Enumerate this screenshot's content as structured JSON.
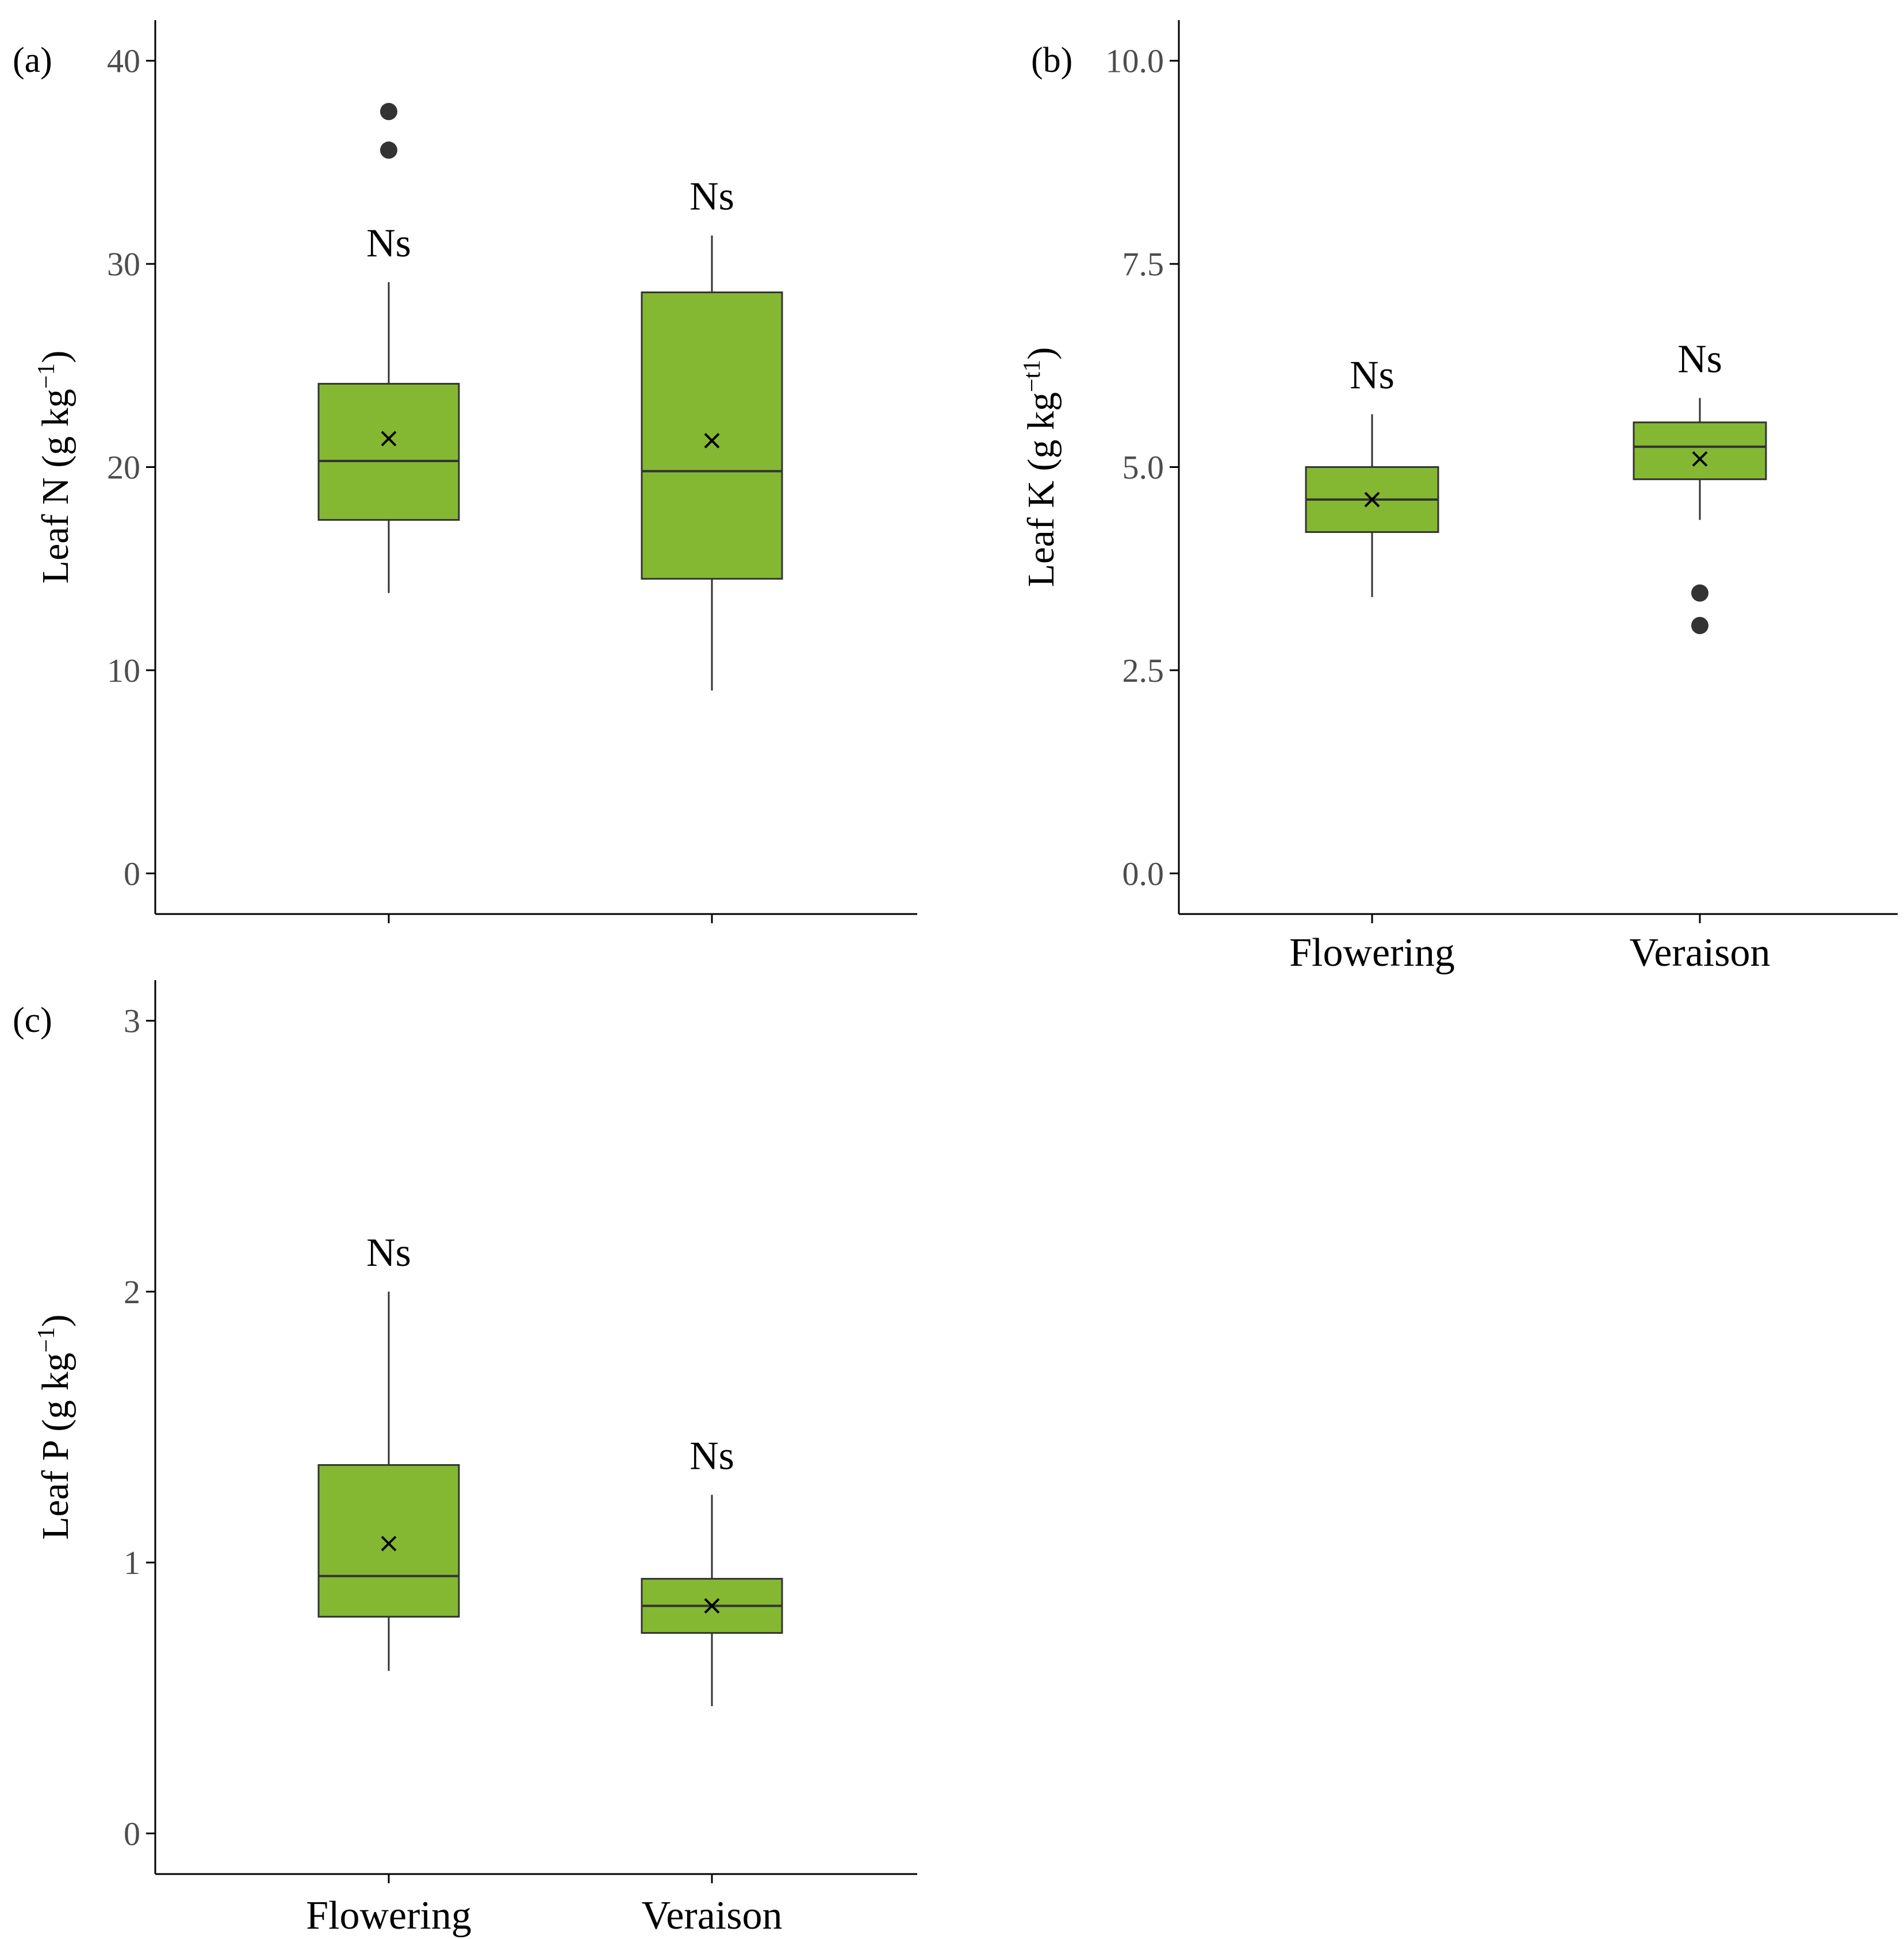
{
  "chart_data": [
    {
      "panel": "(a)",
      "type": "box",
      "ylabel": "Leaf N (g kg",
      "ylabel_sup": "−1",
      "ylabel_close": ")",
      "ylim": [
        -2,
        42
      ],
      "yticks": [
        0,
        10,
        20,
        30,
        40
      ],
      "ytick_labels": [
        "0",
        "10",
        "20",
        "30",
        "40"
      ],
      "categories": [
        "Flowering",
        "Veraison"
      ],
      "show_category_labels": false,
      "fill_color": "#85b832",
      "boxes": [
        {
          "category": "Flowering",
          "whisker_low": 13.8,
          "q1": 17.4,
          "median": 20.3,
          "q3": 24.1,
          "whisker_high": 29.1,
          "mean": 21.4,
          "outliers": [
            35.6,
            37.5
          ],
          "annotation": "Ns"
        },
        {
          "category": "Veraison",
          "whisker_low": 9.0,
          "q1": 14.5,
          "median": 19.8,
          "q3": 28.6,
          "whisker_high": 31.4,
          "mean": 21.3,
          "outliers": [],
          "annotation": "Ns"
        }
      ]
    },
    {
      "panel": "(b)",
      "type": "box",
      "ylabel": "Leaf K (g kg",
      "ylabel_sup": "−t1",
      "ylabel_close": ")",
      "ylim": [
        -0.5,
        10.5
      ],
      "yticks": [
        0,
        2.5,
        5,
        7.5,
        10
      ],
      "ytick_labels": [
        "0.0",
        "2.5",
        "5.0",
        "7.5",
        "10.0"
      ],
      "categories": [
        "Flowering",
        "Veraison"
      ],
      "show_category_labels": true,
      "fill_color": "#85b832",
      "boxes": [
        {
          "category": "Flowering",
          "whisker_low": 3.4,
          "q1": 4.2,
          "median": 4.6,
          "q3": 5.0,
          "whisker_high": 5.65,
          "mean": 4.6,
          "outliers": [],
          "annotation": "Ns"
        },
        {
          "category": "Veraison",
          "whisker_low": 4.35,
          "q1": 4.85,
          "median": 5.25,
          "q3": 5.55,
          "whisker_high": 5.85,
          "mean": 5.1,
          "outliers": [
            3.05,
            3.45
          ],
          "annotation": "Ns"
        }
      ]
    },
    {
      "panel": "(c)",
      "type": "box",
      "ylabel": "Leaf P (g kg",
      "ylabel_sup": "−1",
      "ylabel_close": ")",
      "ylim": [
        -0.15,
        3.15
      ],
      "yticks": [
        0,
        1,
        2,
        3
      ],
      "ytick_labels": [
        "0",
        "1",
        "2",
        "3"
      ],
      "categories": [
        "Flowering",
        "Veraison"
      ],
      "show_category_labels": true,
      "fill_color": "#85b832",
      "boxes": [
        {
          "category": "Flowering",
          "whisker_low": 0.6,
          "q1": 0.8,
          "median": 0.95,
          "q3": 1.36,
          "whisker_high": 2.0,
          "mean": 1.07,
          "outliers": [],
          "annotation": "Ns"
        },
        {
          "category": "Veraison",
          "whisker_low": 0.47,
          "q1": 0.74,
          "median": 0.84,
          "q3": 0.94,
          "whisker_high": 1.25,
          "mean": 0.84,
          "outliers": [],
          "annotation": "Ns"
        }
      ]
    }
  ],
  "mean_marker": "x"
}
